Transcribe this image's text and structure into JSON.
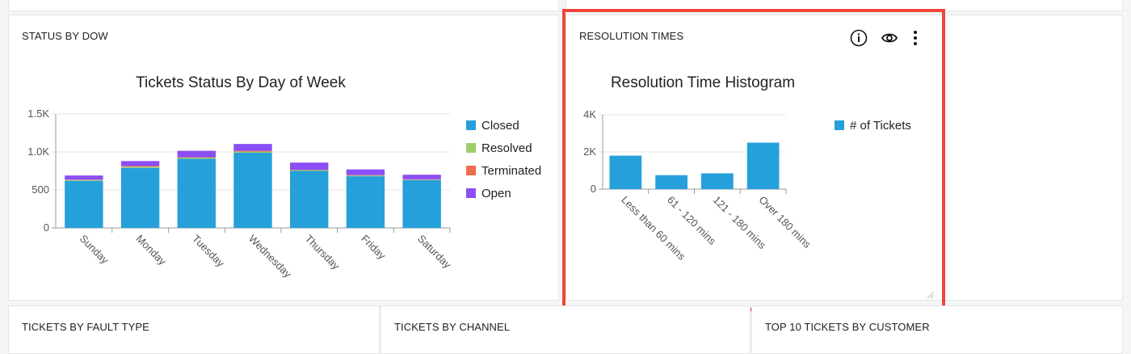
{
  "panels": {
    "status_by_dow": {
      "title": "STATUS BY DOW"
    },
    "resolution_times": {
      "title": "RESOLUTION TIMES"
    },
    "tickets_by_fault_type": {
      "title": "TICKETS BY FAULT TYPE"
    },
    "tickets_by_channel": {
      "title": "TICKETS BY CHANNEL"
    },
    "top10_by_customer": {
      "title": "TOP 10 TICKETS BY CUSTOMER"
    }
  },
  "icons": {
    "info": "info-icon",
    "view": "eye-icon",
    "menu": "kebab-menu-icon",
    "resize": "resize-handle-icon"
  },
  "chart_data": [
    {
      "type": "bar",
      "stacked": true,
      "title": "Tickets Status By Day of Week",
      "categories": [
        "Sunday",
        "Monday",
        "Tuesday",
        "Wednesday",
        "Thursday",
        "Friday",
        "Saturday"
      ],
      "ytick_labels": [
        "0",
        "500",
        "1.0K",
        "1.5K"
      ],
      "ylim": [
        0,
        1500
      ],
      "grid": true,
      "legend_position": "right",
      "series": [
        {
          "name": "Closed",
          "color": "#26a0da",
          "values": [
            620,
            790,
            910,
            990,
            750,
            680,
            630
          ]
        },
        {
          "name": "Resolved",
          "color": "#9ccf6b",
          "values": [
            10,
            15,
            15,
            15,
            10,
            10,
            5
          ]
        },
        {
          "name": "Terminated",
          "color": "#ef6c4f",
          "values": [
            5,
            10,
            5,
            10,
            5,
            5,
            5
          ]
        },
        {
          "name": "Open",
          "color": "#8c4ef5",
          "values": [
            55,
            65,
            85,
            90,
            95,
            75,
            60
          ]
        }
      ]
    },
    {
      "type": "bar",
      "title": "Resolution Time Histogram",
      "categories": [
        "Less than 60 mins",
        "61 - 120 mins",
        "121 - 180 mins",
        "Over 180 mins"
      ],
      "ytick_labels": [
        "0",
        "2K",
        "4K"
      ],
      "ylim": [
        0,
        4000
      ],
      "grid": true,
      "legend_position": "right",
      "series": [
        {
          "name": "# of Tickets",
          "color": "#26a0da",
          "values": [
            1800,
            750,
            850,
            2500
          ]
        }
      ]
    }
  ]
}
